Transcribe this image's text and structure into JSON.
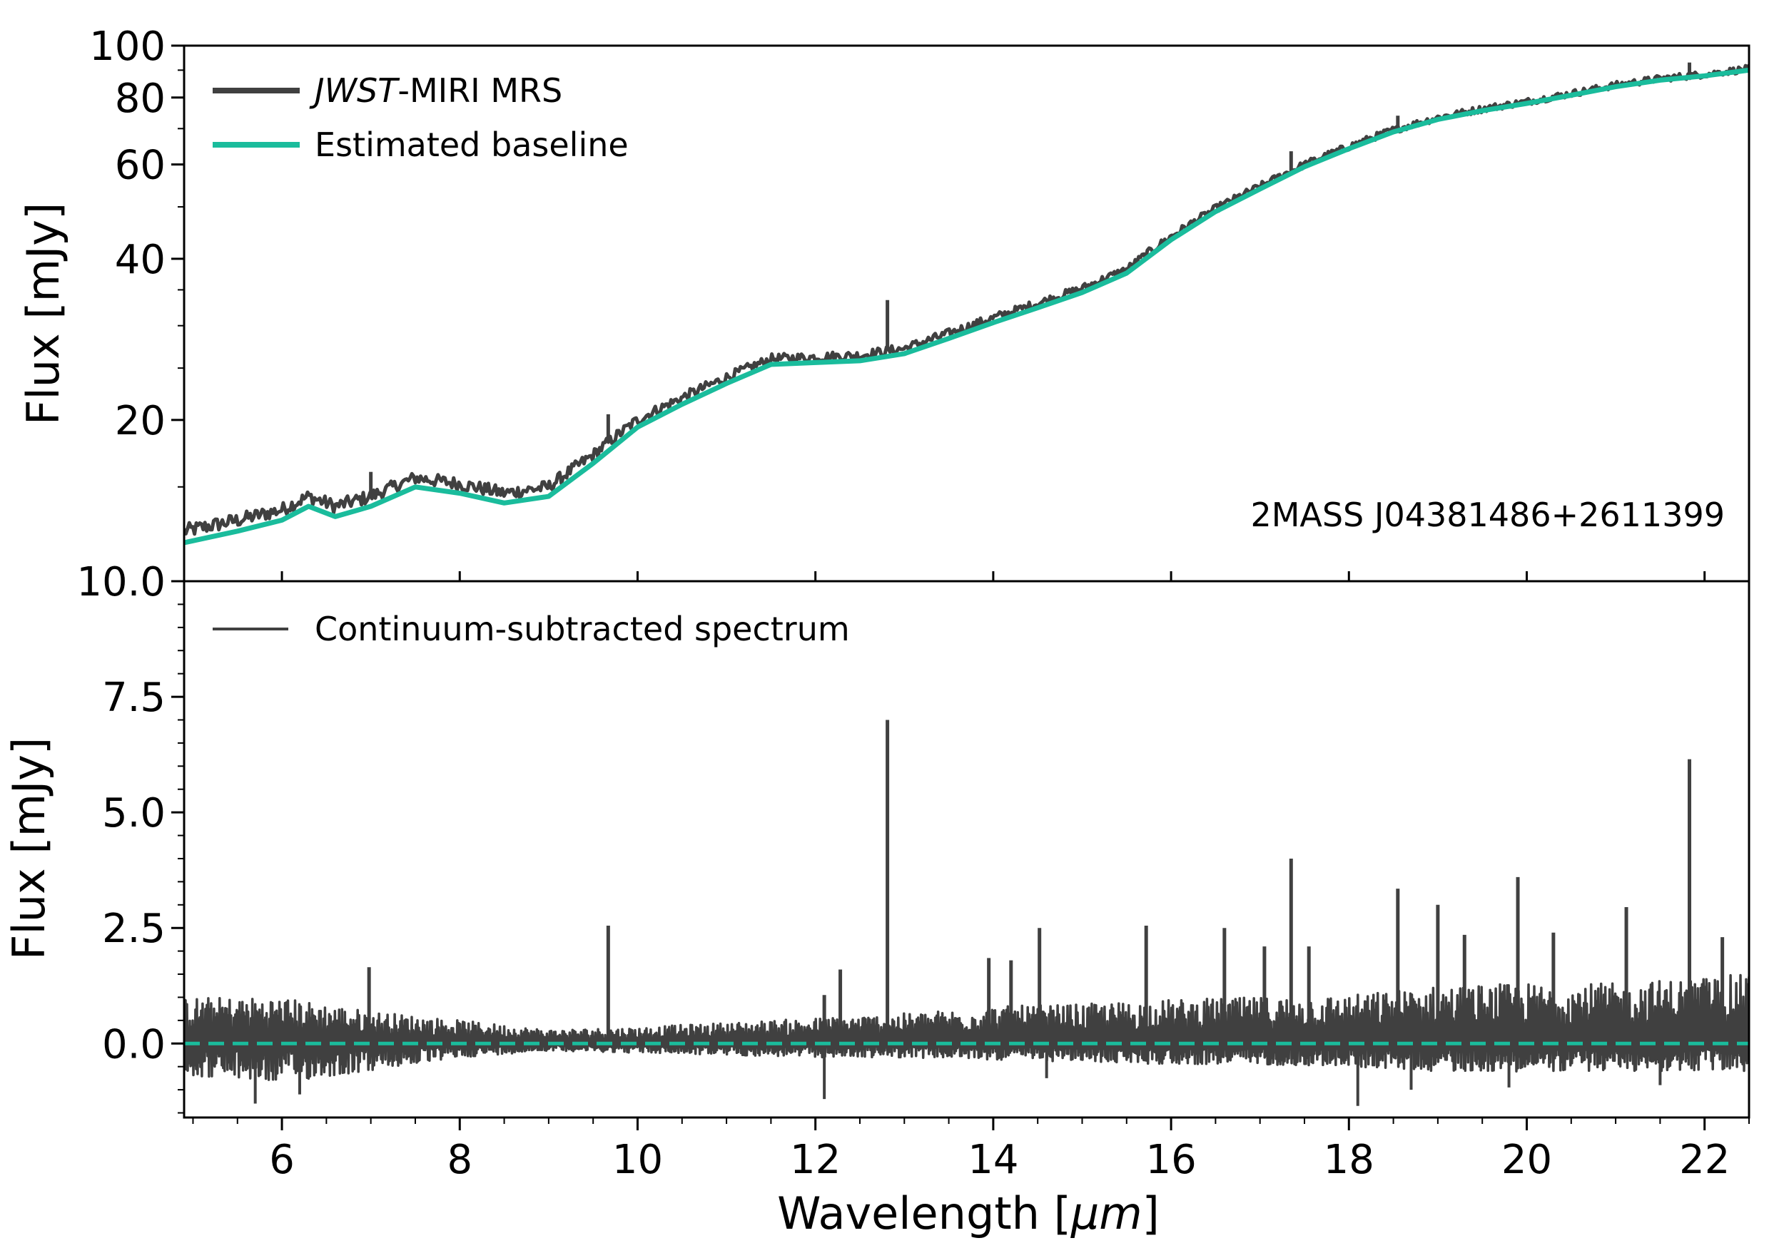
{
  "colors": {
    "data": "#404040",
    "baseline": "#1abc9c",
    "axes": "#000000"
  },
  "chart_data": [
    {
      "type": "line",
      "panel": "top",
      "ylabel": "Flux [mJy]",
      "xlabel": "",
      "xlim": [
        4.9,
        22.5
      ],
      "ylim": [
        10,
        100
      ],
      "yticks": [
        10,
        20,
        40,
        60,
        80,
        100
      ],
      "ytick_labels": [
        "10.0",
        "20",
        "40",
        "60",
        "80",
        "100"
      ],
      "annotation": "2MASS J04381486+2611399",
      "legend": {
        "placement": "top-left",
        "entries": [
          {
            "name_italic": "JWST",
            "name_rest": "-MIRI MRS"
          },
          {
            "name": "Estimated baseline"
          }
        ]
      },
      "series": [
        {
          "name": "JWST-MIRI MRS",
          "x": [
            4.9,
            5.5,
            6.0,
            6.3,
            6.6,
            7.0,
            7.5,
            8.0,
            8.5,
            9.0,
            9.5,
            10.0,
            10.5,
            11.0,
            11.5,
            12.0,
            12.5,
            13.0,
            13.5,
            14.0,
            14.5,
            15.0,
            15.5,
            16.0,
            16.5,
            17.0,
            17.5,
            18.0,
            18.5,
            19.0,
            19.5,
            20.0,
            20.5,
            21.0,
            21.5,
            22.0,
            22.5
          ],
          "values": [
            12.4,
            13.0,
            13.6,
            14.4,
            13.8,
            14.4,
            15.6,
            15.2,
            14.6,
            15.0,
            17.2,
            20.0,
            22.0,
            24.0,
            26.0,
            26.2,
            26.4,
            27.2,
            29.0,
            31.0,
            33.0,
            35.2,
            38.2,
            44.0,
            49.6,
            54.6,
            60.0,
            64.8,
            69.6,
            73.4,
            76.2,
            78.6,
            81.4,
            84.4,
            86.8,
            88.4,
            90.6
          ]
        },
        {
          "name": "Estimated baseline",
          "x": [
            4.9,
            5.5,
            6.0,
            6.3,
            6.6,
            7.0,
            7.5,
            8.0,
            8.5,
            9.0,
            9.5,
            10.0,
            10.5,
            11.0,
            11.5,
            12.0,
            12.5,
            13.0,
            13.5,
            14.0,
            14.5,
            15.0,
            15.5,
            16.0,
            16.5,
            17.0,
            17.5,
            18.0,
            18.5,
            19.0,
            19.5,
            20.0,
            20.5,
            21.0,
            21.5,
            22.0,
            22.5
          ],
          "values": [
            11.8,
            12.4,
            13.0,
            13.8,
            13.2,
            13.8,
            15.0,
            14.6,
            14.0,
            14.4,
            16.6,
            19.4,
            21.4,
            23.4,
            25.4,
            25.6,
            25.8,
            26.6,
            28.4,
            30.4,
            32.4,
            34.6,
            37.6,
            43.4,
            49.0,
            54.0,
            59.4,
            64.2,
            69.0,
            72.8,
            75.6,
            78.0,
            80.8,
            83.8,
            86.2,
            87.8,
            90.0
          ]
        }
      ],
      "peaks": [
        {
          "x": 7.0,
          "y": 16.0
        },
        {
          "x": 9.67,
          "y": 20.5
        },
        {
          "x": 12.81,
          "y": 33.5
        },
        {
          "x": 17.35,
          "y": 63.5
        },
        {
          "x": 18.55,
          "y": 74.0
        },
        {
          "x": 21.83,
          "y": 93.0
        }
      ]
    },
    {
      "type": "line",
      "panel": "bottom",
      "ylabel": "Flux [mJy]",
      "xlabel": "Wavelength [μm]",
      "xlabel_plain": "Wavelength [",
      "xlabel_unit": "μm",
      "xlabel_close": "]",
      "xlim": [
        4.9,
        22.5
      ],
      "ylim": [
        -1.6,
        10
      ],
      "xticks": [
        6,
        8,
        10,
        12,
        14,
        16,
        18,
        20,
        22
      ],
      "xtick_labels": [
        "6",
        "8",
        "10",
        "12",
        "14",
        "16",
        "18",
        "20",
        "22"
      ],
      "yticks": [
        0,
        2.5,
        5,
        7.5
      ],
      "ytick_labels": [
        "0.0",
        "2.5",
        "5.0",
        "7.5"
      ],
      "legend": {
        "placement": "top-left",
        "entries": [
          {
            "name": "Continuum-subtracted spectrum"
          }
        ]
      },
      "zero_line": {
        "name": "zero level",
        "y": 0
      },
      "noise_envelope": {
        "x": [
          4.9,
          6.0,
          7.0,
          8.0,
          9.0,
          10.0,
          11.0,
          12.0,
          13.0,
          14.0,
          15.0,
          16.0,
          17.0,
          18.0,
          19.0,
          20.0,
          21.0,
          22.0,
          22.5
        ],
        "upper": [
          1.0,
          1.0,
          0.7,
          0.5,
          0.3,
          0.35,
          0.45,
          0.55,
          0.65,
          0.8,
          0.85,
          0.95,
          1.0,
          1.05,
          1.25,
          1.3,
          1.3,
          1.45,
          1.5
        ],
        "lower": [
          -0.7,
          -0.85,
          -0.6,
          -0.3,
          -0.15,
          -0.2,
          -0.25,
          -0.3,
          -0.3,
          -0.35,
          -0.4,
          -0.45,
          -0.45,
          -0.5,
          -0.6,
          -0.6,
          -0.6,
          -0.6,
          -0.6
        ]
      },
      "peaks": [
        {
          "x": 6.98,
          "y": 1.65
        },
        {
          "x": 9.67,
          "y": 2.55
        },
        {
          "x": 12.1,
          "y": 1.05
        },
        {
          "x": 12.28,
          "y": 1.6
        },
        {
          "x": 12.81,
          "y": 7.0
        },
        {
          "x": 13.95,
          "y": 1.85
        },
        {
          "x": 14.2,
          "y": 1.8
        },
        {
          "x": 14.52,
          "y": 2.5
        },
        {
          "x": 15.72,
          "y": 2.55
        },
        {
          "x": 16.6,
          "y": 2.5
        },
        {
          "x": 17.05,
          "y": 2.1
        },
        {
          "x": 17.35,
          "y": 4.0
        },
        {
          "x": 17.55,
          "y": 2.1
        },
        {
          "x": 18.55,
          "y": 3.35
        },
        {
          "x": 19.0,
          "y": 3.0
        },
        {
          "x": 19.3,
          "y": 2.35
        },
        {
          "x": 19.9,
          "y": 3.6
        },
        {
          "x": 20.3,
          "y": 2.4
        },
        {
          "x": 21.12,
          "y": 2.95
        },
        {
          "x": 21.83,
          "y": 6.15
        },
        {
          "x": 22.2,
          "y": 2.3
        }
      ],
      "dips": [
        {
          "x": 5.7,
          "y": -1.3
        },
        {
          "x": 6.2,
          "y": -1.1
        },
        {
          "x": 12.1,
          "y": -1.2
        },
        {
          "x": 14.6,
          "y": -0.75
        },
        {
          "x": 18.1,
          "y": -1.35
        },
        {
          "x": 18.7,
          "y": -1.0
        },
        {
          "x": 19.8,
          "y": -0.95
        },
        {
          "x": 21.5,
          "y": -0.9
        }
      ]
    }
  ]
}
